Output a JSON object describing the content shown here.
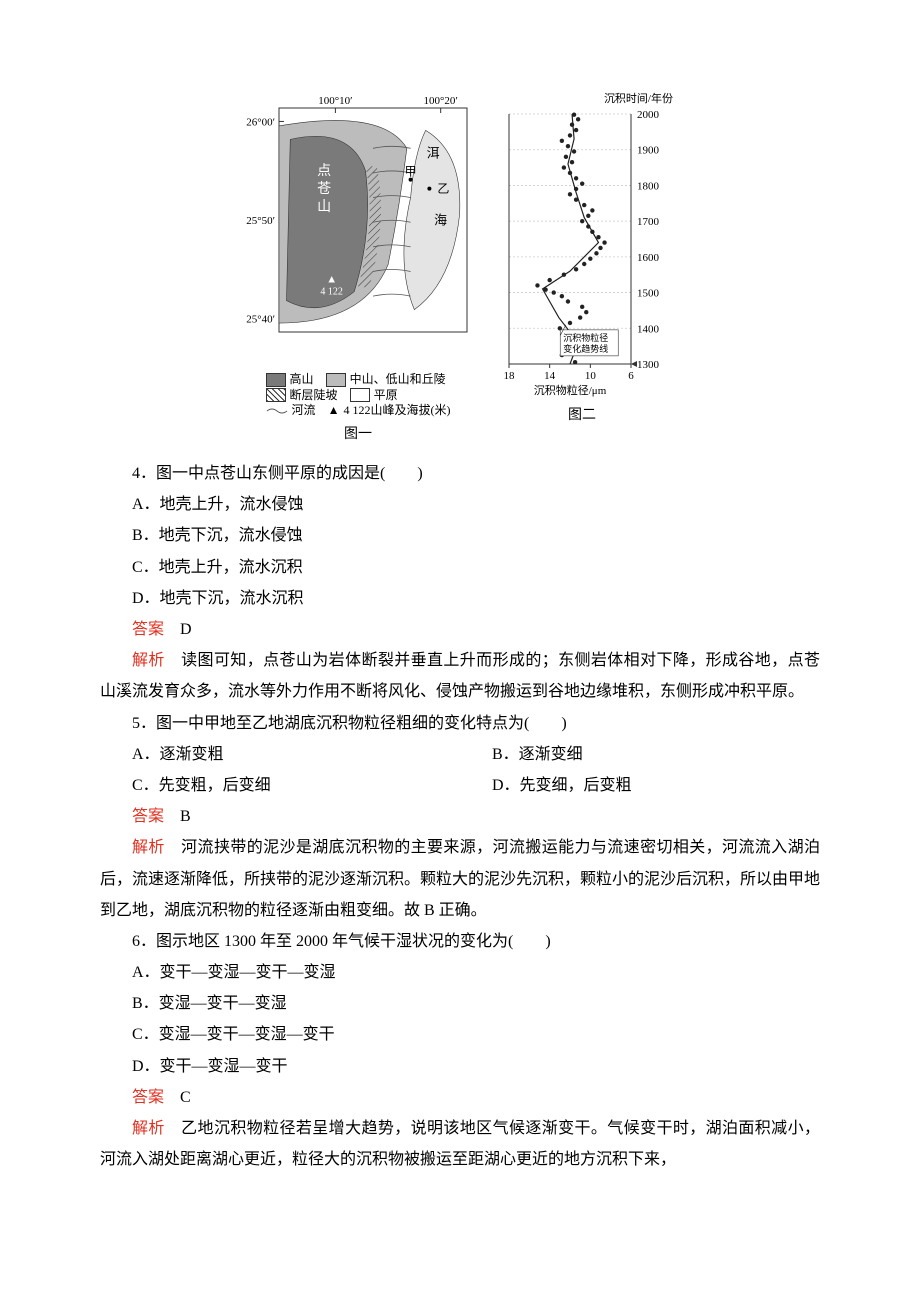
{
  "fig1": {
    "caption": "图一",
    "lon_ticks": [
      "100°10′",
      "100°20′"
    ],
    "lat_ticks": [
      "26°00′",
      "25°50′",
      "25°40′"
    ],
    "mountain_label": "点苍山",
    "lake_label": "洱海",
    "pt_a": "甲",
    "pt_b": "乙",
    "peak_symbol": "▲",
    "peak_elev": "4 122",
    "legend": {
      "high_mtn": "高山",
      "mid_mtn": "中山、低山和丘陵",
      "fault_slope": "断层陡坡",
      "plain": "平原",
      "river": "河流",
      "peak": "4 122山峰及海拔(米)"
    },
    "colors": {
      "high_mtn": "#7a7a7a",
      "mid_mtn": "#bcbcbc",
      "plain": "#ffffff",
      "lake": "#e4e4e4",
      "border": "#333333",
      "river": "#555555"
    }
  },
  "fig2": {
    "caption": "图二",
    "y_title": "沉积时间/年份",
    "x_title": "沉积物粒径/μm",
    "y_ticks": [
      1300,
      1400,
      1500,
      1600,
      1700,
      1800,
      1900,
      2000
    ],
    "x_ticks": [
      18,
      14,
      10,
      6
    ],
    "note": "沉积物粒径\n变化趋势线",
    "xlim": [
      18,
      6
    ],
    "ylim": [
      1300,
      2000
    ],
    "grid_color": "#cccccc",
    "axis_color": "#333333",
    "scatter_color": "#222222",
    "trend_color": "#222222",
    "marker_size": 2.2,
    "fontsize_axis": 11,
    "scatter": [
      [
        11.5,
        1305
      ],
      [
        12.8,
        1325
      ],
      [
        12.1,
        1340
      ],
      [
        10.8,
        1355
      ],
      [
        11.6,
        1370
      ],
      [
        12.6,
        1385
      ],
      [
        13.0,
        1400
      ],
      [
        12.0,
        1415
      ],
      [
        11.0,
        1430
      ],
      [
        10.4,
        1445
      ],
      [
        10.8,
        1460
      ],
      [
        12.2,
        1475
      ],
      [
        12.8,
        1490
      ],
      [
        13.6,
        1500
      ],
      [
        14.4,
        1508
      ],
      [
        15.2,
        1520
      ],
      [
        14.0,
        1535
      ],
      [
        12.6,
        1550
      ],
      [
        11.4,
        1565
      ],
      [
        10.6,
        1580
      ],
      [
        10.0,
        1595
      ],
      [
        9.4,
        1610
      ],
      [
        9.0,
        1625
      ],
      [
        8.6,
        1640
      ],
      [
        9.2,
        1655
      ],
      [
        9.8,
        1670
      ],
      [
        10.2,
        1685
      ],
      [
        10.8,
        1700
      ],
      [
        10.2,
        1715
      ],
      [
        9.8,
        1730
      ],
      [
        10.6,
        1745
      ],
      [
        11.4,
        1760
      ],
      [
        12.0,
        1775
      ],
      [
        11.4,
        1790
      ],
      [
        10.8,
        1805
      ],
      [
        11.4,
        1820
      ],
      [
        12.0,
        1835
      ],
      [
        12.6,
        1850
      ],
      [
        11.8,
        1865
      ],
      [
        12.4,
        1880
      ],
      [
        11.6,
        1895
      ],
      [
        12.2,
        1910
      ],
      [
        12.8,
        1925
      ],
      [
        12.0,
        1940
      ],
      [
        11.4,
        1955
      ],
      [
        11.8,
        1970
      ],
      [
        11.2,
        1985
      ],
      [
        11.6,
        1998
      ]
    ],
    "trend": [
      [
        12.0,
        1300
      ],
      [
        11.2,
        1360
      ],
      [
        13.1,
        1430
      ],
      [
        14.7,
        1510
      ],
      [
        12.0,
        1560
      ],
      [
        9.2,
        1640
      ],
      [
        10.6,
        1710
      ],
      [
        11.4,
        1780
      ],
      [
        12.2,
        1860
      ],
      [
        11.6,
        1930
      ],
      [
        11.8,
        2000
      ]
    ]
  },
  "q4": {
    "stem": "4．图一中点苍山东侧平原的成因是(　　)",
    "A": "A．地壳上升，流水侵蚀",
    "B": "B．地壳下沉，流水侵蚀",
    "C": "C．地壳上升，流水沉积",
    "D": "D．地壳下沉，流水沉积",
    "ans_label": "答案",
    "ans": "D",
    "exp_label": "解析",
    "exp": "读图可知，点苍山为岩体断裂并垂直上升而形成的；东侧岩体相对下降，形成谷地，点苍山溪流发育众多，流水等外力作用不断将风化、侵蚀产物搬运到谷地边缘堆积，东侧形成冲积平原。"
  },
  "q5": {
    "stem": "5．图一中甲地至乙地湖底沉积物粒径粗细的变化特点为(　　)",
    "A": "A．逐渐变粗",
    "B": "B．逐渐变细",
    "C": "C．先变粗，后变细",
    "D": "D．先变细，后变粗",
    "ans_label": "答案",
    "ans": "B",
    "exp_label": "解析",
    "exp": "河流挟带的泥沙是湖底沉积物的主要来源，河流搬运能力与流速密切相关，河流流入湖泊后，流速逐渐降低，所挟带的泥沙逐渐沉积。颗粒大的泥沙先沉积，颗粒小的泥沙后沉积，所以由甲地到乙地，湖底沉积物的粒径逐渐由粗变细。故 B 正确。"
  },
  "q6": {
    "stem": "6．图示地区 1300 年至 2000 年气候干湿状况的变化为(　　)",
    "A": "A．变干—变湿—变干—变湿",
    "B": "B．变湿—变干—变湿",
    "C": "C．变湿—变干—变湿—变干",
    "D": "D．变干—变湿—变干",
    "ans_label": "答案",
    "ans": "C",
    "exp_label": "解析",
    "exp": "乙地沉积物粒径若呈增大趋势，说明该地区气候逐渐变干。气候变干时，湖泊面积减小，河流入湖处距离湖心更近，粒径大的沉积物被搬运至距湖心更近的地方沉积下来，"
  }
}
